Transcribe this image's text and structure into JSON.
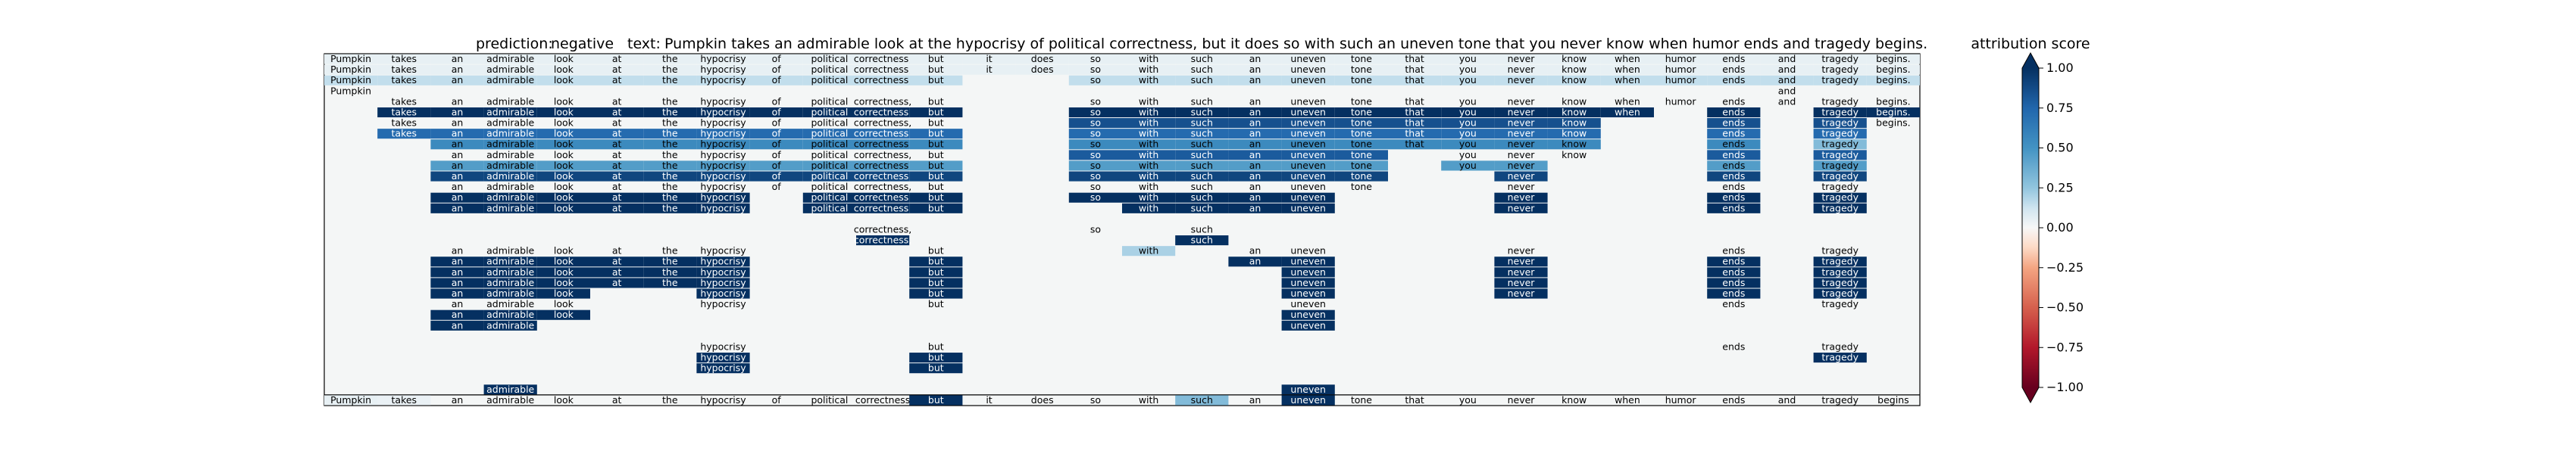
{
  "chart_data": {
    "type": "heatmap",
    "title": {
      "prediction_label": "prediction:",
      "prediction": "negative",
      "text_label": "text:",
      "text": "Pumpkin takes an admirable look at the hypocrisy of political correctness, but it does so with such an uneven tone that you never know when humor ends and tragedy begins."
    },
    "colorbar": {
      "label": "attribution score",
      "range": [
        -1.0,
        1.0
      ],
      "ticks": [
        "1.00",
        "0.75",
        "0.50",
        "0.25",
        "0.00",
        "−0.25",
        "−0.50",
        "−0.75",
        "−1.00"
      ],
      "colormap": "RdBu"
    },
    "tokens": [
      "Pumpkin",
      "takes",
      "an",
      "admirable",
      "look",
      "at",
      "the",
      "hypocrisy",
      "of",
      "political",
      "correctness,",
      "but",
      "it",
      "does",
      "so",
      "with",
      "such",
      "an",
      "uneven",
      "tone",
      "that",
      "you",
      "never",
      "know",
      "when",
      "humor",
      "ends",
      "and",
      "tragedy",
      "begins."
    ],
    "final_row_tokens": [
      "Pumpkin",
      "takes",
      "an",
      "admirable",
      "look",
      "at",
      "the",
      "hypocrisy",
      "of",
      "political",
      "correctness",
      "but",
      "it",
      "does",
      "so",
      "with",
      "such",
      "an",
      "uneven",
      "tone",
      "that",
      "you",
      "never",
      "know",
      "when",
      "humor",
      "ends",
      "and",
      "tragedy",
      "begins"
    ],
    "final_row_scores": {
      "0": 0.05,
      "1": 0.04,
      "11": 1.0,
      "16": 0.3,
      "18": 1.0
    },
    "rows": [
      {
        "present": [
          0,
          1,
          2,
          3,
          4,
          5,
          6,
          7,
          8,
          9,
          10,
          11,
          12,
          13,
          14,
          15,
          16,
          17,
          18,
          19,
          20,
          21,
          22,
          23,
          24,
          25,
          26,
          27,
          28,
          29
        ],
        "scores": {
          "0": 0.05,
          "1": 0.05,
          "2": 0.05,
          "3": 0.05,
          "4": 0.05,
          "5": 0.05,
          "6": 0.05,
          "7": 0.05,
          "8": 0.05,
          "9": 0.05,
          "10": 0.05,
          "11": 0.05,
          "12": 0.05,
          "13": 0.05,
          "14": 0.05,
          "15": 0.05,
          "16": 0.05,
          "17": 0.05,
          "18": 0.05,
          "19": 0.05,
          "20": 0.05,
          "21": 0.05,
          "22": 0.05,
          "23": 0.05,
          "24": 0.05,
          "25": 0.05,
          "26": 0.05,
          "27": 0.05,
          "28": 0.05,
          "29": 0.05
        }
      },
      {
        "present": [
          0,
          1,
          2,
          3,
          4,
          5,
          6,
          7,
          8,
          9,
          10,
          11,
          12,
          13,
          14,
          15,
          16,
          17,
          18,
          19,
          20,
          21,
          22,
          23,
          24,
          25,
          26,
          27,
          28,
          29
        ],
        "scores": {
          "0": 0.05,
          "1": 0.05,
          "2": 0.05,
          "3": 0.05,
          "4": 0.05,
          "5": 0.05,
          "6": 0.05,
          "7": 0.05,
          "8": 0.05,
          "9": 0.05,
          "10": 0.05,
          "11": 0.05,
          "12": 0.05,
          "13": 0.05,
          "14": 0.05,
          "15": 0.05,
          "16": 0.05,
          "17": 0.05,
          "18": 0.05,
          "19": 0.05,
          "20": 0.05,
          "21": 0.05,
          "22": 0.05,
          "23": 0.05,
          "24": 0.05,
          "25": 0.05,
          "26": 0.05,
          "27": 0.05,
          "28": 0.05,
          "29": 0.05
        }
      },
      {
        "present": [
          0,
          1,
          2,
          3,
          4,
          5,
          6,
          7,
          8,
          9,
          10,
          11,
          14,
          15,
          16,
          17,
          18,
          19,
          20,
          21,
          22,
          23,
          24,
          25,
          26,
          27,
          28,
          29
        ],
        "scores": {
          "0": 0.15,
          "1": 0.15,
          "2": 0.15,
          "3": 0.15,
          "4": 0.15,
          "5": 0.15,
          "6": 0.15,
          "7": 0.15,
          "8": 0.15,
          "9": 0.15,
          "10": 0.15,
          "11": 0.15,
          "14": 0.15,
          "15": 0.15,
          "16": 0.15,
          "17": 0.15,
          "18": 0.15,
          "19": 0.15,
          "20": 0.15,
          "21": 0.15,
          "22": 0.15,
          "23": 0.15,
          "24": 0.15,
          "25": 0.15,
          "26": 0.15,
          "27": 0.15,
          "28": 0.15,
          "29": 0.15
        }
      },
      {
        "present": [
          0,
          27
        ],
        "scores": {}
      },
      {
        "present": [
          1,
          2,
          3,
          4,
          5,
          6,
          7,
          8,
          9,
          10,
          11,
          14,
          15,
          16,
          17,
          18,
          19,
          20,
          21,
          22,
          23,
          24,
          25,
          26,
          27,
          28,
          29
        ],
        "scores": {}
      },
      {
        "present": [
          1,
          2,
          3,
          4,
          5,
          6,
          7,
          8,
          9,
          10,
          11,
          14,
          15,
          16,
          17,
          18,
          19,
          20,
          21,
          22,
          23,
          24,
          26,
          28,
          29
        ],
        "scores": {
          "1": 1.0,
          "2": 1.0,
          "3": 1.0,
          "4": 1.0,
          "5": 1.0,
          "6": 1.0,
          "7": 1.0,
          "8": 1.0,
          "9": 1.0,
          "10": 1.0,
          "11": 1.0,
          "14": 1.0,
          "15": 1.0,
          "16": 1.0,
          "17": 1.0,
          "18": 1.0,
          "19": 1.0,
          "20": 1.0,
          "21": 1.0,
          "22": 1.0,
          "23": 1.0,
          "24": 1.0,
          "26": 1.0,
          "28": 1.0,
          "29": 1.0
        }
      },
      {
        "present": [
          1,
          2,
          3,
          4,
          5,
          6,
          7,
          8,
          9,
          10,
          11,
          14,
          15,
          16,
          17,
          18,
          19,
          20,
          21,
          22,
          23,
          26,
          28,
          29
        ],
        "scores": {
          "14": 0.85,
          "15": 0.85,
          "16": 0.85,
          "17": 0.85,
          "18": 0.85,
          "19": 0.85,
          "20": 0.85,
          "21": 0.85,
          "22": 0.85,
          "23": 0.85,
          "26": 0.85,
          "28": 0.85
        }
      },
      {
        "present": [
          1,
          2,
          3,
          4,
          5,
          6,
          7,
          8,
          9,
          10,
          11,
          14,
          15,
          16,
          17,
          18,
          19,
          20,
          21,
          22,
          23,
          26,
          28
        ],
        "scores": {
          "1": 0.72,
          "2": 0.72,
          "3": 0.72,
          "4": 0.72,
          "5": 0.72,
          "6": 0.72,
          "7": 0.72,
          "8": 0.72,
          "9": 0.72,
          "10": 0.72,
          "11": 0.72,
          "14": 0.72,
          "15": 0.72,
          "16": 0.72,
          "17": 0.72,
          "18": 0.72,
          "19": 0.72,
          "20": 0.72,
          "21": 0.72,
          "22": 0.72,
          "23": 0.72,
          "26": 0.72,
          "28": 0.72
        }
      },
      {
        "present": [
          2,
          3,
          4,
          5,
          6,
          7,
          8,
          9,
          10,
          11,
          14,
          15,
          16,
          17,
          18,
          19,
          20,
          21,
          22,
          23,
          26,
          28
        ],
        "scores": {
          "2": 0.55,
          "3": 0.55,
          "4": 0.55,
          "5": 0.55,
          "6": 0.55,
          "7": 0.55,
          "8": 0.55,
          "9": 0.55,
          "10": 0.55,
          "11": 0.55,
          "14": 0.55,
          "15": 0.55,
          "16": 0.55,
          "17": 0.55,
          "18": 0.55,
          "19": 0.55,
          "20": 0.55,
          "21": 0.55,
          "22": 0.55,
          "23": 0.55,
          "26": 0.55,
          "28": 0.3
        }
      },
      {
        "present": [
          2,
          3,
          4,
          5,
          6,
          7,
          8,
          9,
          10,
          11,
          14,
          15,
          16,
          17,
          18,
          19,
          21,
          22,
          23,
          26,
          28
        ],
        "scores": {
          "14": 0.8,
          "15": 0.8,
          "16": 0.8,
          "17": 0.8,
          "18": 0.8,
          "19": 0.8,
          "26": 0.8,
          "28": 0.8
        }
      },
      {
        "present": [
          2,
          3,
          4,
          5,
          6,
          7,
          8,
          9,
          10,
          11,
          14,
          15,
          16,
          17,
          18,
          19,
          21,
          22,
          26,
          28
        ],
        "scores": {
          "2": 0.45,
          "3": 0.45,
          "4": 0.45,
          "5": 0.45,
          "6": 0.45,
          "7": 0.45,
          "8": 0.45,
          "9": 0.45,
          "10": 0.45,
          "11": 0.45,
          "14": 0.45,
          "15": 0.45,
          "16": 0.45,
          "17": 0.45,
          "18": 0.45,
          "19": 0.45,
          "21": 0.45,
          "22": 0.45,
          "26": 0.45,
          "28": 0.45
        }
      },
      {
        "present": [
          2,
          3,
          4,
          5,
          6,
          7,
          8,
          9,
          10,
          11,
          14,
          15,
          16,
          17,
          18,
          19,
          22,
          26,
          28
        ],
        "scores": {
          "2": 0.9,
          "3": 0.9,
          "4": 0.9,
          "5": 0.9,
          "6": 0.9,
          "7": 0.9,
          "8": 0.9,
          "9": 0.9,
          "10": 0.9,
          "11": 0.9,
          "14": 0.9,
          "15": 0.9,
          "16": 0.9,
          "17": 0.9,
          "18": 0.9,
          "19": 0.9,
          "22": 0.9,
          "26": 0.9,
          "28": 0.9
        }
      },
      {
        "present": [
          2,
          3,
          4,
          5,
          6,
          7,
          8,
          9,
          10,
          11,
          14,
          15,
          16,
          17,
          18,
          19,
          22,
          26,
          28
        ],
        "scores": {}
      },
      {
        "present": [
          2,
          3,
          4,
          5,
          6,
          7,
          9,
          10,
          11,
          14,
          15,
          16,
          17,
          18,
          22,
          26,
          28
        ],
        "scores": {
          "2": 1.0,
          "3": 1.0,
          "4": 1.0,
          "5": 1.0,
          "6": 1.0,
          "7": 1.0,
          "9": 1.0,
          "10": 1.0,
          "11": 1.0,
          "14": 1.0,
          "15": 1.0,
          "16": 1.0,
          "17": 1.0,
          "18": 1.0,
          "22": 1.0,
          "26": 1.0,
          "28": 1.0
        }
      },
      {
        "present": [
          2,
          3,
          4,
          5,
          6,
          7,
          9,
          10,
          11,
          15,
          16,
          17,
          18,
          22,
          26,
          28
        ],
        "scores": {
          "2": 1.0,
          "3": 1.0,
          "4": 1.0,
          "5": 1.0,
          "6": 1.0,
          "7": 1.0,
          "9": 1.0,
          "10": 1.0,
          "11": 1.0,
          "15": 1.0,
          "16": 1.0,
          "17": 1.0,
          "18": 1.0,
          "22": 1.0,
          "26": 1.0,
          "28": 1.0
        }
      },
      {
        "present": [],
        "scores": {}
      },
      {
        "present": [
          10,
          14,
          16
        ],
        "scores": {}
      },
      {
        "present": [
          10,
          16
        ],
        "scores": {
          "10": 1.0,
          "16": 1.0
        }
      },
      {
        "present": [
          2,
          3,
          4,
          5,
          6,
          7,
          11,
          15,
          17,
          18,
          22,
          26,
          28
        ],
        "scores": {
          "15": 0.2
        }
      },
      {
        "present": [
          2,
          3,
          4,
          5,
          6,
          7,
          11,
          17,
          18,
          22,
          26,
          28
        ],
        "scores": {
          "2": 1.0,
          "3": 1.0,
          "4": 1.0,
          "5": 1.0,
          "6": 1.0,
          "7": 1.0,
          "11": 1.0,
          "17": 1.0,
          "18": 1.0,
          "22": 1.0,
          "26": 1.0,
          "28": 1.0
        }
      },
      {
        "present": [
          2,
          3,
          4,
          5,
          6,
          7,
          11,
          18,
          22,
          26,
          28
        ],
        "scores": {
          "2": 1.0,
          "3": 1.0,
          "4": 1.0,
          "5": 1.0,
          "6": 1.0,
          "7": 1.0,
          "11": 1.0,
          "18": 1.0,
          "22": 1.0,
          "26": 1.0,
          "28": 1.0
        }
      },
      {
        "present": [
          2,
          3,
          4,
          5,
          6,
          7,
          11,
          18,
          22,
          26,
          28
        ],
        "scores": {
          "2": 1.0,
          "3": 1.0,
          "4": 1.0,
          "5": 1.0,
          "6": 1.0,
          "7": 1.0,
          "11": 1.0,
          "18": 1.0,
          "22": 1.0,
          "26": 1.0,
          "28": 1.0
        }
      },
      {
        "present": [
          2,
          3,
          4,
          7,
          11,
          18,
          22,
          26,
          28
        ],
        "scores": {
          "2": 1.0,
          "3": 1.0,
          "4": 1.0,
          "7": 1.0,
          "11": 1.0,
          "18": 1.0,
          "22": 1.0,
          "26": 1.0,
          "28": 1.0
        }
      },
      {
        "present": [
          2,
          3,
          4,
          7,
          11,
          18,
          26,
          28
        ],
        "scores": {}
      },
      {
        "present": [
          2,
          3,
          4,
          18
        ],
        "scores": {
          "2": 1.0,
          "3": 1.0,
          "4": 1.0,
          "18": 1.0
        }
      },
      {
        "present": [
          2,
          3,
          18
        ],
        "scores": {
          "2": 1.0,
          "3": 1.0,
          "18": 1.0
        }
      },
      {
        "present": [],
        "scores": {}
      },
      {
        "present": [
          7,
          11,
          26,
          28
        ],
        "scores": {}
      },
      {
        "present": [
          7,
          11,
          28
        ],
        "scores": {
          "7": 1.0,
          "11": 1.0,
          "28": 1.0
        }
      },
      {
        "present": [
          7,
          11
        ],
        "scores": {
          "7": 1.0,
          "11": 1.0
        }
      },
      {
        "present": [],
        "scores": {}
      },
      {
        "present": [
          3,
          18
        ],
        "scores": {
          "3": 1.0,
          "18": 1.0
        }
      }
    ]
  }
}
